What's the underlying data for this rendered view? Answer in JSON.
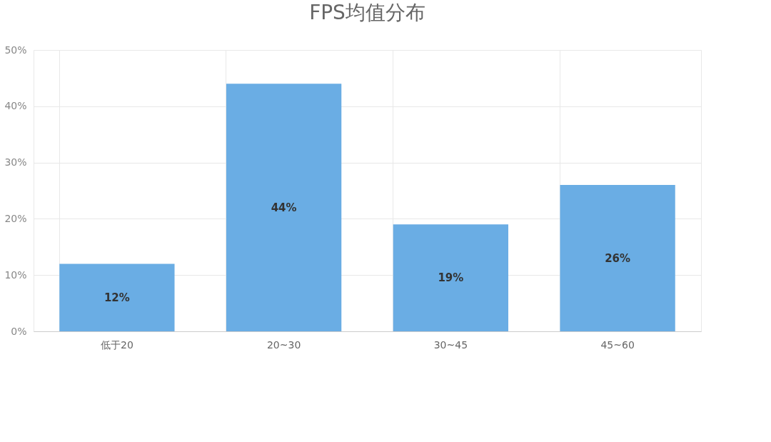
{
  "chart_data": {
    "type": "bar",
    "title": "FPS均值分布",
    "categories": [
      "低于20",
      "20~30",
      "30~45",
      "45~60"
    ],
    "values": [
      12,
      44,
      19,
      26
    ],
    "color": "#6aade4",
    "value_labels": [
      "12%",
      "44%",
      "19%",
      "26%"
    ],
    "ylim": [
      0,
      50
    ],
    "yticks": [
      {
        "value": 0,
        "label": "0%"
      },
      {
        "value": 10,
        "label": "10%"
      },
      {
        "value": 20,
        "label": "20%"
      },
      {
        "value": 30,
        "label": "30%"
      },
      {
        "value": 40,
        "label": "40%"
      },
      {
        "value": 50,
        "label": "50%"
      }
    ],
    "grid": true
  }
}
